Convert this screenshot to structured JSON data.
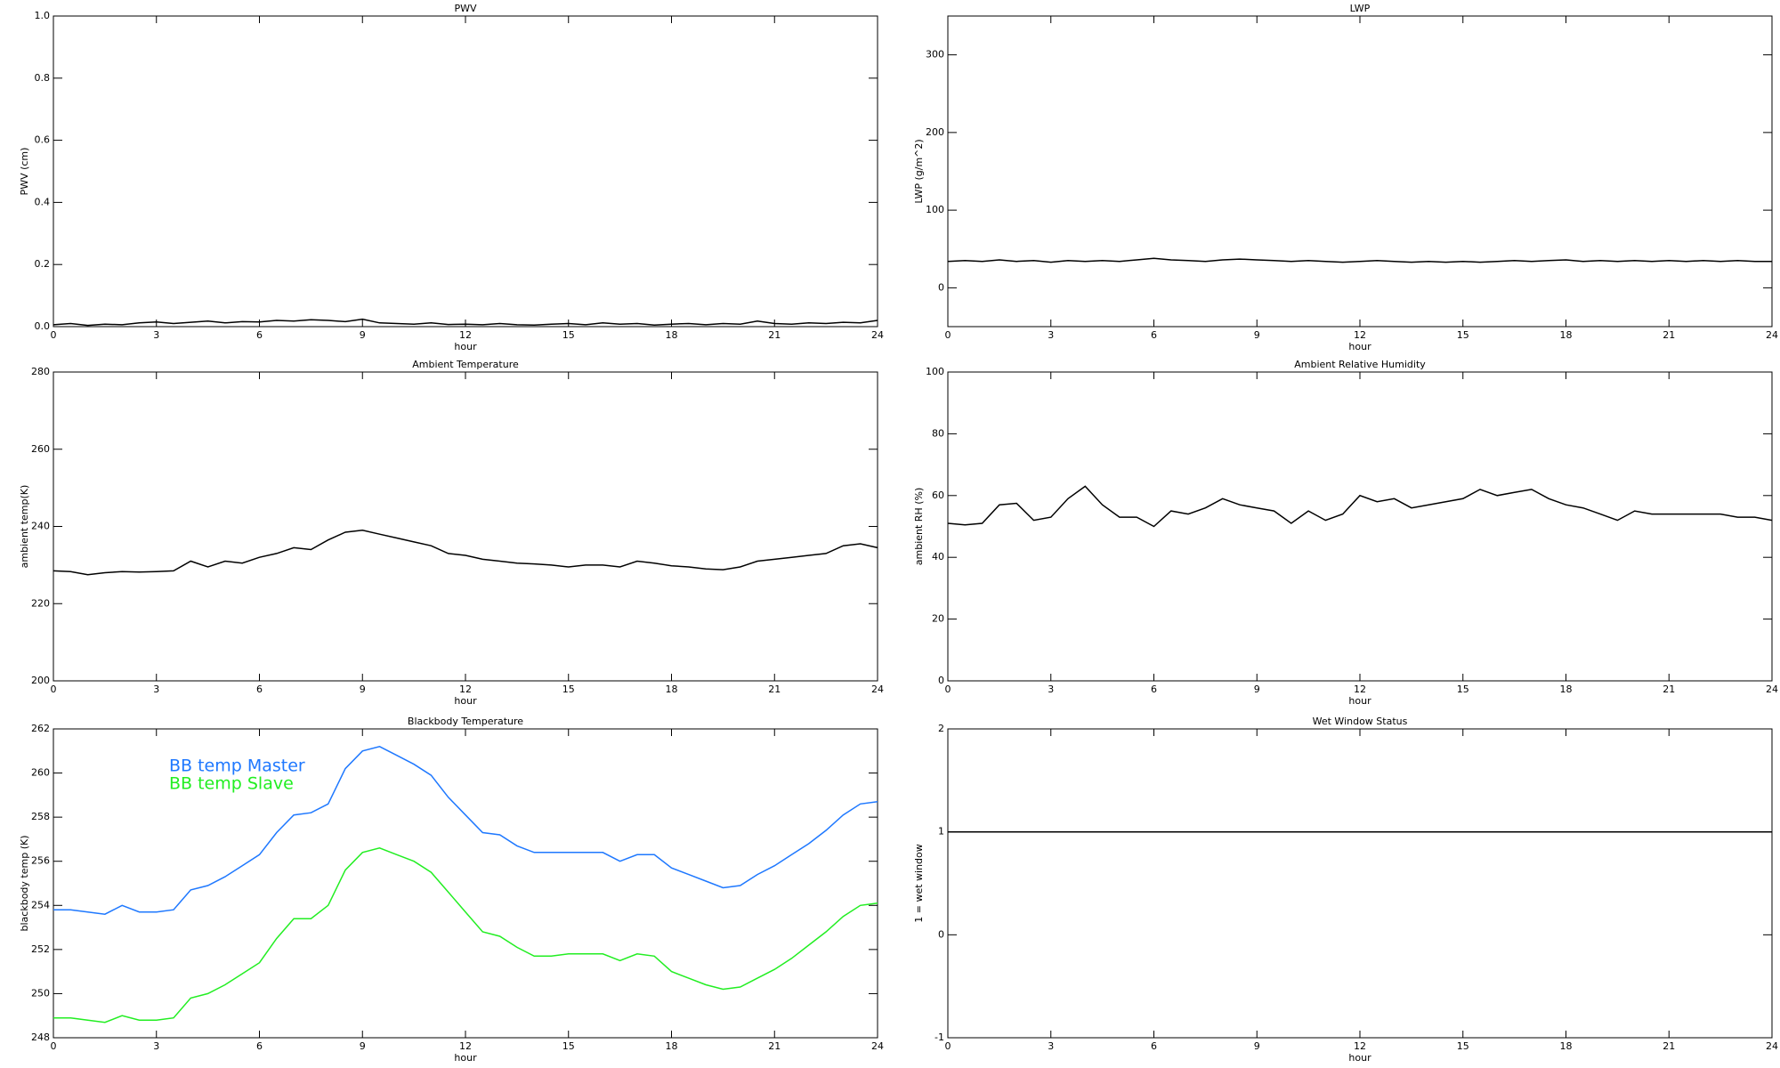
{
  "chart_data": [
    {
      "type": "line",
      "title": "PWV",
      "xlabel": "hour",
      "ylabel": "PWV (cm)",
      "xlim": [
        0,
        24
      ],
      "xticks": [
        0,
        3,
        6,
        9,
        12,
        15,
        18,
        21,
        24
      ],
      "ylim": [
        0,
        1
      ],
      "yticks": [
        {
          "value": 0,
          "label": "0.0"
        },
        {
          "value": 0.2,
          "label": "0.2"
        },
        {
          "value": 0.4,
          "label": "0.4"
        },
        {
          "value": 0.6,
          "label": "0.6"
        },
        {
          "value": 0.8,
          "label": "0.8"
        },
        {
          "value": 1,
          "label": "1.0"
        }
      ],
      "x": [
        0,
        0.5,
        1,
        1.5,
        2,
        2.5,
        3,
        3.5,
        4,
        4.5,
        5,
        5.5,
        6,
        6.5,
        7,
        7.5,
        8,
        8.5,
        9,
        9.5,
        10,
        10.5,
        11,
        11.5,
        12,
        12.5,
        13,
        13.5,
        14,
        14.5,
        15,
        15.5,
        16,
        16.5,
        17,
        17.5,
        18,
        18.5,
        19,
        19.5,
        20,
        20.5,
        21,
        21.5,
        22,
        22.5,
        23,
        23.5,
        24
      ],
      "series": [
        {
          "color": "#000000",
          "values": [
            0.006,
            0.01,
            0.004,
            0.008,
            0.006,
            0.012,
            0.015,
            0.01,
            0.014,
            0.018,
            0.012,
            0.016,
            0.015,
            0.02,
            0.018,
            0.022,
            0.02,
            0.016,
            0.024,
            0.012,
            0.01,
            0.008,
            0.012,
            0.007,
            0.008,
            0.006,
            0.01,
            0.006,
            0.005,
            0.008,
            0.01,
            0.006,
            0.012,
            0.008,
            0.01,
            0.005,
            0.008,
            0.01,
            0.006,
            0.01,
            0.008,
            0.018,
            0.01,
            0.008,
            0.012,
            0.01,
            0.014,
            0.012,
            0.02
          ]
        }
      ]
    },
    {
      "type": "line",
      "title": "LWP",
      "xlabel": "hour",
      "ylabel": "LWP (g/m^2)",
      "xlim": [
        0,
        24
      ],
      "xticks": [
        0,
        3,
        6,
        9,
        12,
        15,
        18,
        21,
        24
      ],
      "ylim": [
        -50,
        350
      ],
      "yticks": [
        0,
        100,
        200,
        300
      ],
      "x": [
        0,
        0.5,
        1,
        1.5,
        2,
        2.5,
        3,
        3.5,
        4,
        4.5,
        5,
        5.5,
        6,
        6.5,
        7,
        7.5,
        8,
        8.5,
        9,
        9.5,
        10,
        10.5,
        11,
        11.5,
        12,
        12.5,
        13,
        13.5,
        14,
        14.5,
        15,
        15.5,
        16,
        16.5,
        17,
        17.5,
        18,
        18.5,
        19,
        19.5,
        20,
        20.5,
        21,
        21.5,
        22,
        22.5,
        23,
        23.5,
        24
      ],
      "series": [
        {
          "color": "#000000",
          "values": [
            34,
            35,
            34,
            36,
            34,
            35,
            33,
            35,
            34,
            35,
            34,
            36,
            38,
            36,
            35,
            34,
            36,
            37,
            36,
            35,
            34,
            35,
            34,
            33,
            34,
            35,
            34,
            33,
            34,
            33,
            34,
            33,
            34,
            35,
            34,
            35,
            36,
            34,
            35,
            34,
            35,
            34,
            35,
            34,
            35,
            34,
            35,
            34,
            34
          ]
        }
      ]
    },
    {
      "type": "line",
      "title": "Ambient Temperature",
      "xlabel": "hour",
      "ylabel": "ambient temp(K)",
      "xlim": [
        0,
        24
      ],
      "xticks": [
        0,
        3,
        6,
        9,
        12,
        15,
        18,
        21,
        24
      ],
      "ylim": [
        200,
        280
      ],
      "yticks": [
        200,
        220,
        240,
        260,
        280
      ],
      "x": [
        0,
        0.5,
        1,
        1.5,
        2,
        2.5,
        3,
        3.5,
        4,
        4.5,
        5,
        5.5,
        6,
        6.5,
        7,
        7.5,
        8,
        8.5,
        9,
        9.5,
        10,
        10.5,
        11,
        11.5,
        12,
        12.5,
        13,
        13.5,
        14,
        14.5,
        15,
        15.5,
        16,
        16.5,
        17,
        17.5,
        18,
        18.5,
        19,
        19.5,
        20,
        20.5,
        21,
        21.5,
        22,
        22.5,
        23,
        23.5,
        24
      ],
      "series": [
        {
          "color": "#000000",
          "values": [
            228.5,
            228.3,
            227.5,
            228,
            228.3,
            228.2,
            228.3,
            228.5,
            231,
            229.5,
            231,
            230.5,
            232,
            233,
            234.5,
            234,
            236.5,
            238.5,
            239,
            238,
            237,
            236,
            235,
            233,
            232.5,
            231.5,
            231,
            230.5,
            230.3,
            230,
            229.5,
            230,
            230,
            229.5,
            231,
            230.5,
            229.8,
            229.5,
            229,
            228.8,
            229.5,
            231,
            231.5,
            232,
            232.5,
            233,
            235,
            235.5,
            234.5
          ]
        }
      ]
    },
    {
      "type": "line",
      "title": "Ambient Relative Humidity",
      "xlabel": "hour",
      "ylabel": "ambient RH (%)",
      "xlim": [
        0,
        24
      ],
      "xticks": [
        0,
        3,
        6,
        9,
        12,
        15,
        18,
        21,
        24
      ],
      "ylim": [
        0,
        100
      ],
      "yticks": [
        0,
        20,
        40,
        60,
        80,
        100
      ],
      "x": [
        0,
        0.5,
        1,
        1.5,
        2,
        2.5,
        3,
        3.5,
        4,
        4.5,
        5,
        5.5,
        6,
        6.5,
        7,
        7.5,
        8,
        8.5,
        9,
        9.5,
        10,
        10.5,
        11,
        11.5,
        12,
        12.5,
        13,
        13.5,
        14,
        14.5,
        15,
        15.5,
        16,
        16.5,
        17,
        17.5,
        18,
        18.5,
        19,
        19.5,
        20,
        20.5,
        21,
        21.5,
        22,
        22.5,
        23,
        23.5,
        24
      ],
      "series": [
        {
          "color": "#000000",
          "values": [
            51,
            50.5,
            51,
            57,
            57.5,
            52,
            53,
            59,
            63,
            57,
            53,
            53,
            50,
            55,
            54,
            56,
            59,
            57,
            56,
            55,
            51,
            55,
            52,
            54,
            60,
            58,
            59,
            56,
            57,
            58,
            59,
            62,
            60,
            61,
            62,
            59,
            57,
            56,
            54,
            52,
            55,
            54,
            54,
            54,
            54,
            54,
            53,
            53,
            52
          ]
        }
      ]
    },
    {
      "type": "line",
      "title": "Blackbody Temperature",
      "xlabel": "hour",
      "ylabel": "blackbody temp (K)",
      "xlim": [
        0,
        24
      ],
      "xticks": [
        0,
        3,
        6,
        9,
        12,
        15,
        18,
        21,
        24
      ],
      "ylim": [
        248,
        262
      ],
      "yticks": [
        248,
        250,
        252,
        254,
        256,
        258,
        260,
        262
      ],
      "legend": "upper left",
      "x": [
        0,
        0.5,
        1,
        1.5,
        2,
        2.5,
        3,
        3.5,
        4,
        4.5,
        5,
        5.5,
        6,
        6.5,
        7,
        7.5,
        8,
        8.5,
        9,
        9.5,
        10,
        10.5,
        11,
        11.5,
        12,
        12.5,
        13,
        13.5,
        14,
        14.5,
        15,
        15.5,
        16,
        16.5,
        17,
        17.5,
        18,
        18.5,
        19,
        19.5,
        20,
        20.5,
        21,
        21.5,
        22,
        22.5,
        23,
        23.5,
        24
      ],
      "series": [
        {
          "name": "BB temp Master",
          "color": "#1e78ff",
          "values": [
            253.8,
            253.8,
            253.7,
            253.6,
            254,
            253.7,
            253.7,
            253.8,
            254.7,
            254.9,
            255.3,
            255.8,
            256.3,
            257.3,
            258.1,
            258.2,
            258.6,
            260.2,
            261,
            261.2,
            260.8,
            260.4,
            259.9,
            258.9,
            258.1,
            257.3,
            257.2,
            256.7,
            256.4,
            256.4,
            256.4,
            256.4,
            256.4,
            256,
            256.3,
            256.3,
            255.7,
            255.4,
            255.1,
            254.8,
            254.9,
            255.4,
            255.8,
            256.3,
            256.8,
            257.4,
            258.1,
            258.6,
            258.7
          ]
        },
        {
          "name": "BB temp Slave",
          "color": "#22ee22",
          "values": [
            248.9,
            248.9,
            248.8,
            248.7,
            249,
            248.8,
            248.8,
            248.9,
            249.8,
            250,
            250.4,
            250.9,
            251.4,
            252.5,
            253.4,
            253.4,
            254,
            255.6,
            256.4,
            256.6,
            256.3,
            256,
            255.5,
            254.6,
            253.7,
            252.8,
            252.6,
            252.1,
            251.7,
            251.7,
            251.8,
            251.8,
            251.8,
            251.5,
            251.8,
            251.7,
            251,
            250.7,
            250.4,
            250.2,
            250.3,
            250.7,
            251.1,
            251.6,
            252.2,
            252.8,
            253.5,
            254,
            254.1
          ]
        }
      ]
    },
    {
      "type": "line",
      "title": "Wet Window Status",
      "xlabel": "hour",
      "ylabel": "1 = wet window",
      "xlim": [
        0,
        24
      ],
      "xticks": [
        0,
        3,
        6,
        9,
        12,
        15,
        18,
        21,
        24
      ],
      "ylim": [
        -1,
        2
      ],
      "yticks": [
        -1,
        0,
        1,
        2
      ],
      "x": [
        0,
        24
      ],
      "series": [
        {
          "color": "#000000",
          "values": [
            1,
            1
          ]
        }
      ]
    }
  ]
}
